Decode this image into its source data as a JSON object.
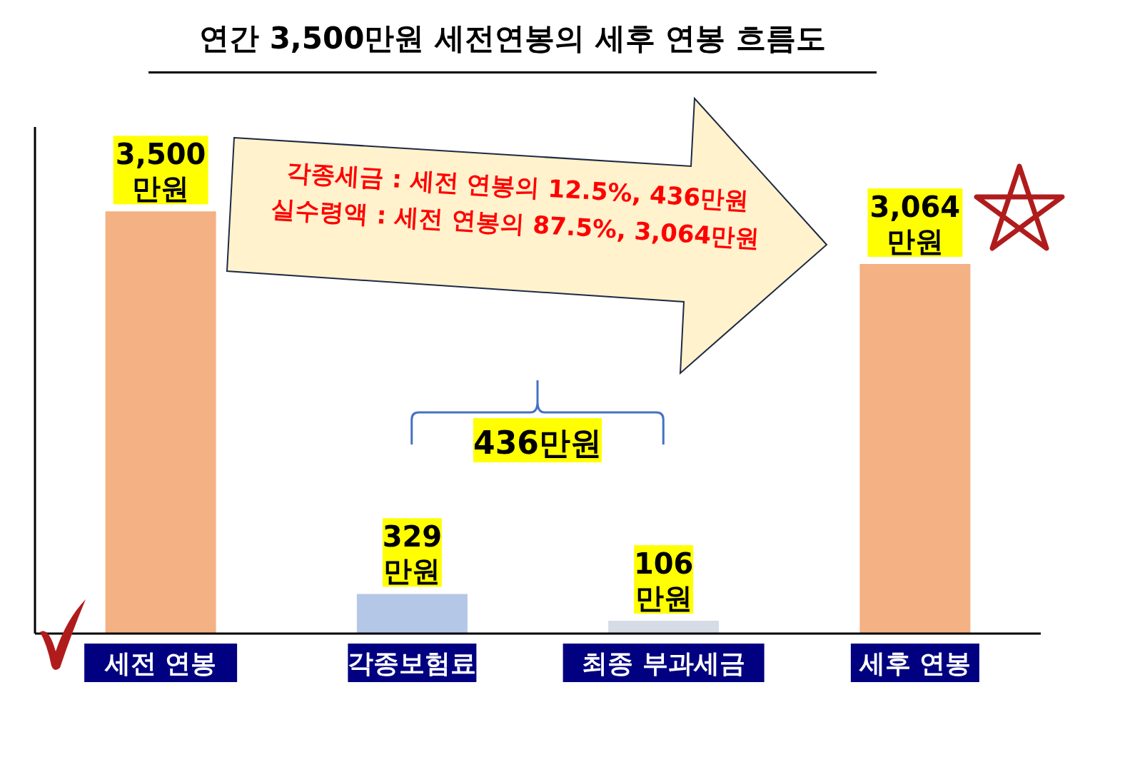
{
  "chart_data": {
    "type": "bar",
    "title": "연간 3,500만원 세전연봉의 세후 연봉 흐름도",
    "categories": [
      "세전  연봉",
      "각종보험료",
      "최종  부과세금",
      "세후 연봉"
    ],
    "values": [
      3500,
      329,
      106,
      3064
    ],
    "colors": [
      "#f4b183",
      "#b4c7e7",
      "#d6dce5",
      "#f4b183"
    ],
    "value_labels": [
      "3,500\n만원",
      "329\n만원",
      "106\n만원",
      "3,064\n만원"
    ],
    "annotations": [
      "각종세금 : 세전 연봉의 12.5%, 436만원",
      "실수령액 : 세전 연봉의 87.5%, 3,064만원",
      "436만원"
    ],
    "data_labels": false
  }
}
